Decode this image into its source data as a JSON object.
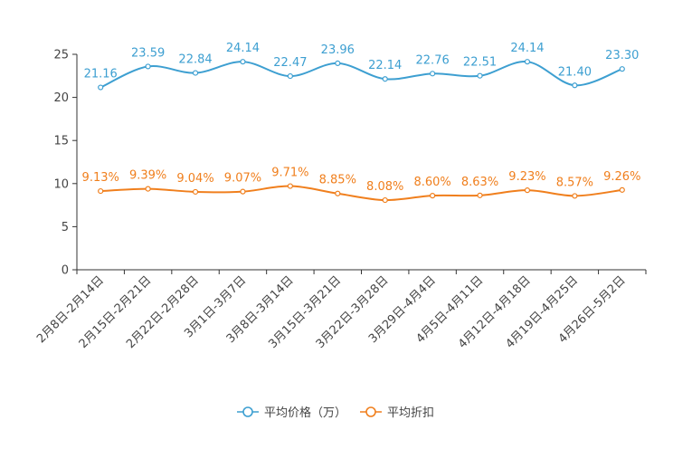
{
  "chart_data": {
    "type": "line",
    "title": "",
    "xlabel": "",
    "ylabel": "",
    "ylim": [
      0,
      25
    ],
    "yticks": [
      0,
      5,
      10,
      15,
      20,
      25
    ],
    "grid": false,
    "legend_position": "bottom-center",
    "categories": [
      "2月8日-2月14日",
      "2月15日-2月21日",
      "2月22日-2月28日",
      "3月1日-3月7日",
      "3月8日-3月14日",
      "3月15日-3月21日",
      "3月22日-3月28日",
      "3月29日-4月4日",
      "4月5日-4月11日",
      "4月12日-4月18日",
      "4月19日-4月25日",
      "4月26日-5月2日"
    ],
    "series": [
      {
        "name": "平均价格（万）",
        "color": "#3d9fd1",
        "values": [
          21.16,
          23.59,
          22.84,
          24.14,
          22.47,
          23.96,
          22.14,
          22.76,
          22.51,
          24.14,
          21.4,
          23.3
        ],
        "labels": [
          "21.16",
          "23.59",
          "22.84",
          "24.14",
          "22.47",
          "23.96",
          "22.14",
          "22.76",
          "22.51",
          "24.14",
          "21.40",
          "23.30"
        ]
      },
      {
        "name": "平均折扣",
        "color": "#f07f1d",
        "values": [
          9.13,
          9.39,
          9.04,
          9.07,
          9.71,
          8.85,
          8.08,
          8.6,
          8.63,
          9.23,
          8.57,
          9.26
        ],
        "labels": [
          "9.13%",
          "9.39%",
          "9.04%",
          "9.07%",
          "9.71%",
          "8.85%",
          "8.08%",
          "8.60%",
          "8.63%",
          "9.23%",
          "8.57%",
          "9.26%"
        ]
      }
    ]
  }
}
